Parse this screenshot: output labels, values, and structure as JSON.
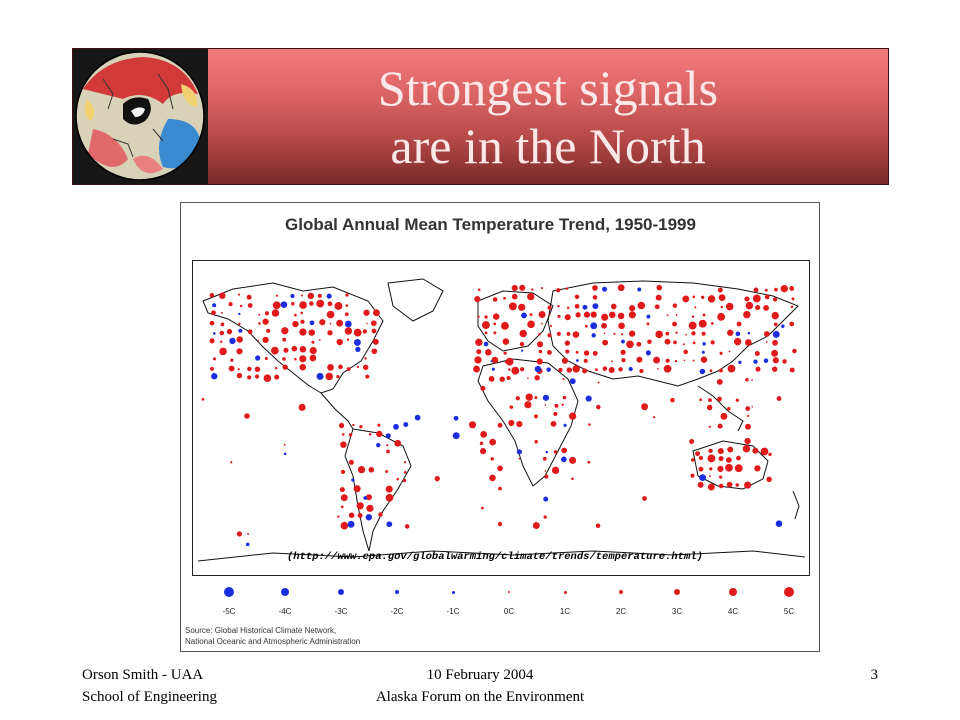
{
  "slide": {
    "title_line1": "Strongest signals",
    "title_line2": "are in the North",
    "page_number": "3"
  },
  "figure": {
    "title": "Global Annual Mean Temperature Trend, 1950-1999",
    "url": "(http://www.epa.gov/globalwarming/climate/trends/temperature.html)",
    "source_line1": "Source: Global Historical Climate Network,",
    "source_line2": "National Oceanic and Atmospheric Administration",
    "legend": [
      {
        "label": "-5C",
        "color": "#1a2ee0"
      },
      {
        "label": "-4C",
        "color": "#1a2ee0"
      },
      {
        "label": "-3C",
        "color": "#1a2ee0"
      },
      {
        "label": "-2C",
        "color": "#1a2ee0"
      },
      {
        "label": "-1C",
        "color": "#1a2ee0"
      },
      {
        "label": "0C",
        "color": "#e01a1a"
      },
      {
        "label": "1C",
        "color": "#e01a1a"
      },
      {
        "label": "2C",
        "color": "#e01a1a"
      },
      {
        "label": "3C",
        "color": "#e01a1a"
      },
      {
        "label": "4C",
        "color": "#e01a1a"
      },
      {
        "label": "5C",
        "color": "#e01a1a"
      }
    ]
  },
  "footer": {
    "left_line1": "Orson Smith - UAA",
    "left_line2": "School of Engineering",
    "center_line1": "10 February 2004",
    "center_line2": "Alaska Forum on the Environment"
  }
}
